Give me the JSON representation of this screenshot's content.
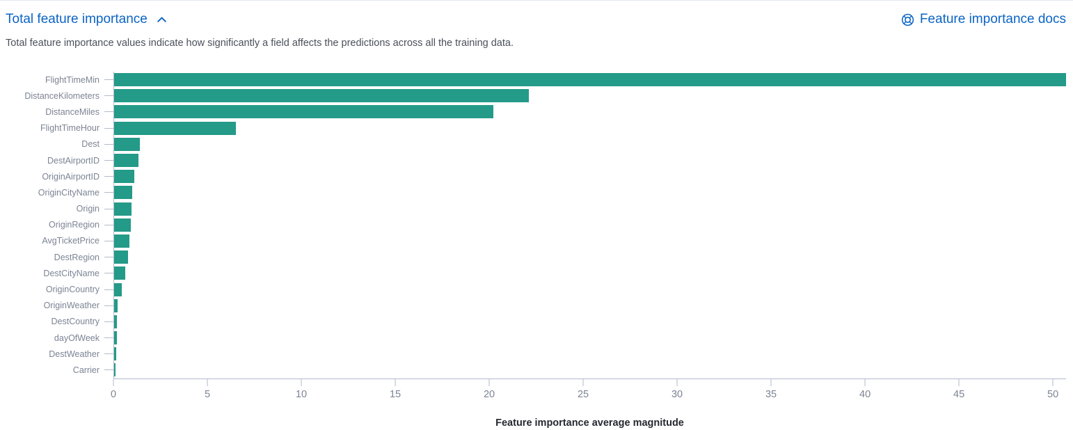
{
  "panel": {
    "title": "Total feature importance",
    "docs_link_label": "Feature importance docs",
    "description": "Total feature importance values indicate how significantly a field affects the predictions across all the training data."
  },
  "icons": {
    "collapse": "chevron-up-icon",
    "docs": "help-lifebuoy-icon"
  },
  "colors": {
    "link_blue": "#0b64c4",
    "bar_teal": "#249a88",
    "axis_line": "#b2bacb",
    "tick_label": "#7b8494",
    "body_text": "#343741",
    "x_axis_title": "#24282f"
  },
  "chart_data": {
    "type": "bar",
    "orientation": "horizontal",
    "title": "",
    "xlabel": "Feature importance average magnitude",
    "ylabel": "",
    "categories": [
      "FlightTimeMin",
      "DistanceKilometers",
      "DistanceMiles",
      "FlightTimeHour",
      "Dest",
      "DestAirportID",
      "OriginAirportID",
      "OriginCityName",
      "Origin",
      "OriginRegion",
      "AvgTicketPrice",
      "DestRegion",
      "DestCityName",
      "OriginCountry",
      "OriginWeather",
      "DestCountry",
      "dayOfWeek",
      "DestWeather",
      "Carrier"
    ],
    "values": [
      50.7,
      22.1,
      20.2,
      6.5,
      1.37,
      1.3,
      1.07,
      0.97,
      0.93,
      0.88,
      0.83,
      0.74,
      0.6,
      0.42,
      0.19,
      0.14,
      0.16,
      0.1,
      0.07
    ],
    "xlim": [
      0,
      50.7
    ],
    "x_ticks": [
      0,
      5,
      10,
      15,
      20,
      25,
      30,
      35,
      40,
      45,
      50
    ],
    "grid": false,
    "legend": false
  }
}
